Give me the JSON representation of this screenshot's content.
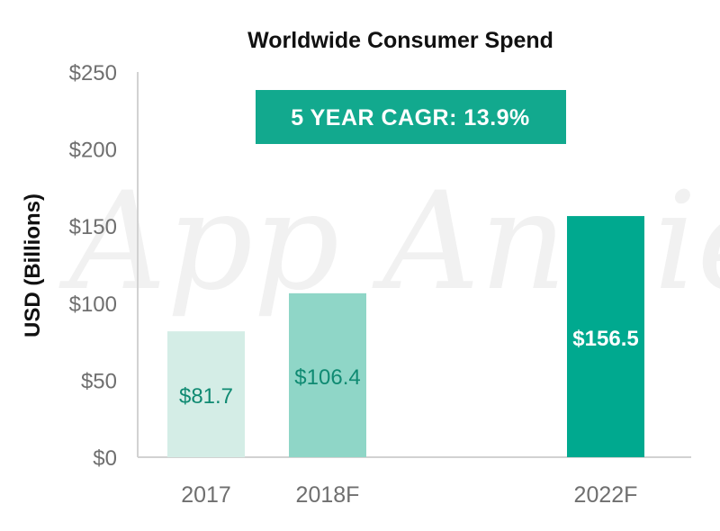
{
  "chart_data": {
    "type": "bar",
    "title": "Worldwide Consumer Spend",
    "ylabel": "USD (Billions)",
    "xlabel": "",
    "categories": [
      "2017",
      "2018F",
      "2022F"
    ],
    "values": [
      81.7,
      106.4,
      156.5
    ],
    "value_labels": [
      "$81.7",
      "$106.4",
      "$156.5"
    ],
    "bar_colors": [
      "#d4ede6",
      "#8fd6c7",
      "#00a98f"
    ],
    "label_colors": [
      "#0f8a72",
      "#0f8a72",
      "#ffffff"
    ],
    "ylim": [
      0,
      250
    ],
    "yticks": [
      0,
      50,
      100,
      150,
      200,
      250
    ],
    "ytick_labels": [
      "$0",
      "$50",
      "$100",
      "$150",
      "$200",
      "$250"
    ],
    "annotation": "5 YEAR CAGR: 13.9%",
    "annotation_color": "#12a98e",
    "watermark": "App Annie",
    "grid": false,
    "legend": "none"
  }
}
